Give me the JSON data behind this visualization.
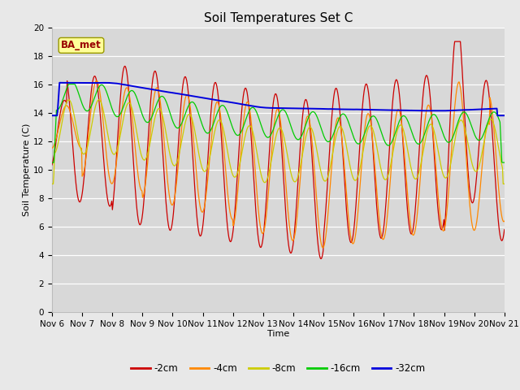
{
  "title": "Soil Temperatures Set C",
  "xlabel": "Time",
  "ylabel": "Soil Temperature (C)",
  "ylim": [
    0,
    20
  ],
  "yticks": [
    0,
    2,
    4,
    6,
    8,
    10,
    12,
    14,
    16,
    18,
    20
  ],
  "xtick_labels": [
    "Nov 6",
    "Nov 7",
    "Nov 8",
    "Nov 9",
    "Nov 10",
    "Nov 11",
    "Nov 12",
    "Nov 13",
    "Nov 14",
    "Nov 15",
    "Nov 16",
    "Nov 17",
    "Nov 18",
    "Nov 19",
    "Nov 20",
    "Nov 21"
  ],
  "legend_labels": [
    "-2cm",
    "-4cm",
    "-8cm",
    "-16cm",
    "-32cm"
  ],
  "colors": {
    "-2cm": "#cc0000",
    "-4cm": "#ff8800",
    "-8cm": "#cccc00",
    "-16cm": "#00cc00",
    "-32cm": "#0000dd"
  },
  "annotation_text": "BA_met",
  "annotation_color": "#990000",
  "annotation_bg": "#ffff99",
  "background_color": "#e8e8e8",
  "plot_bg_color": "#d8d8d8",
  "title_fontsize": 11,
  "label_fontsize": 8,
  "tick_fontsize": 7.5
}
